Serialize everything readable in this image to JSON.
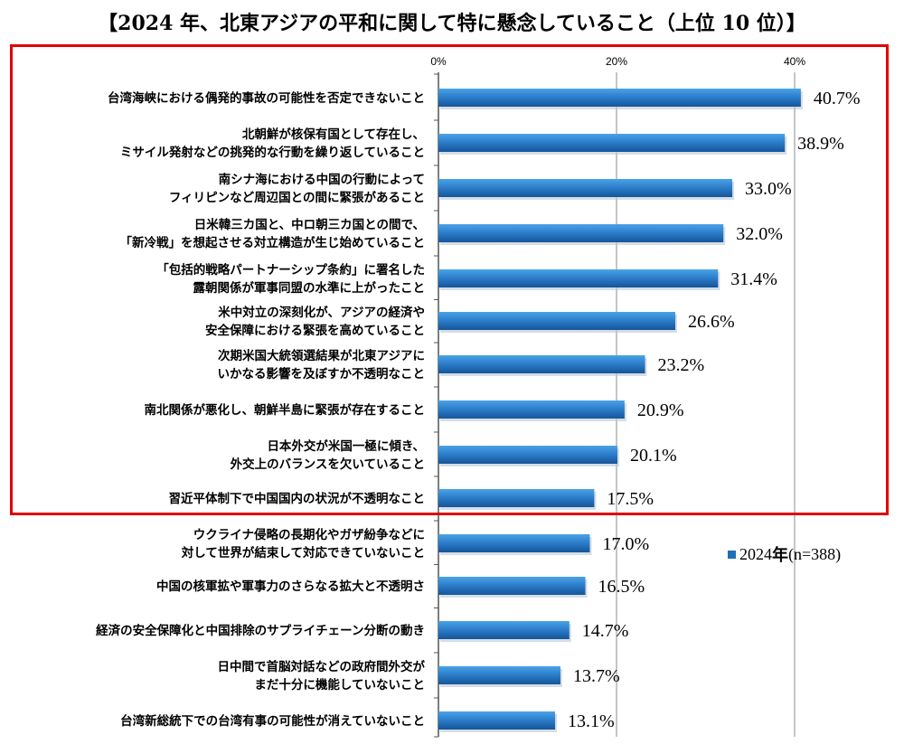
{
  "chart_data": {
    "type": "bar",
    "orientation": "horizontal",
    "title": "【2024 年、北東アジアの平和に関して特に懸念していること（上位 10 位）】",
    "xlabel": "",
    "ylabel": "",
    "xlim": [
      0,
      45
    ],
    "ticks": [
      0,
      20,
      40
    ],
    "tick_labels": [
      "0%",
      "20%",
      "40%"
    ],
    "legend": {
      "label_year": "2024",
      "label_suffix": "年",
      "label_n": "(n=388)",
      "position": "right"
    },
    "categories": [
      [
        "台湾海峡における偶発的事故の可能性を否定できないこと"
      ],
      [
        "北朝鮮が核保有国として存在し、",
        "ミサイル発射などの挑発的な行動を繰り返していること"
      ],
      [
        "南シナ海における中国の行動によって",
        "フィリピンなど周辺国との間に緊張があること"
      ],
      [
        "日米韓三カ国と、中ロ朝三カ国との間で、",
        "「新冷戦」を想起させる対立構造が生じ始めていること"
      ],
      [
        "「包括的戦略パートナーシップ条約」に署名した",
        "露朝関係が軍事同盟の水準に上がったこと"
      ],
      [
        "米中対立の深刻化が、アジアの経済や",
        "安全保障における緊張を高めていること"
      ],
      [
        "次期米国大統領選結果が北東アジアに",
        "いかなる影響を及ぼすか不透明なこと"
      ],
      [
        "南北関係が悪化し、朝鮮半島に緊張が存在すること"
      ],
      [
        "日本外交が米国一極に傾き、",
        "外交上のバランスを欠いていること"
      ],
      [
        "習近平体制下で中国国内の状況が不透明なこと"
      ],
      [
        "ウクライナ侵略の長期化やガザ紛争などに",
        "対して世界が結束して対応できていないこと"
      ],
      [
        "中国の核軍拡や軍事力のさらなる拡大と不透明さ"
      ],
      [
        "経済の安全保障化と中国排除のサプライチェーン分断の動き"
      ],
      [
        "日中間で首脳対話などの政府間外交が",
        "まだ十分に機能していないこと"
      ],
      [
        "台湾新総統下での台湾有事の可能性が消えていないこと"
      ]
    ],
    "series": [
      {
        "name": "2024年(n=388)",
        "values": [
          40.7,
          38.9,
          33.0,
          32.0,
          31.4,
          26.6,
          23.2,
          20.9,
          20.1,
          17.5,
          17.0,
          16.5,
          14.7,
          13.7,
          13.1
        ],
        "value_labels": [
          "40.7%",
          "38.9%",
          "33.0%",
          "32.0%",
          "31.4%",
          "26.6%",
          "23.2%",
          "20.9%",
          "20.1%",
          "17.5%",
          "17.0%",
          "16.5%",
          "14.7%",
          "13.7%",
          "13.1%"
        ]
      }
    ],
    "highlight": "top 10",
    "colors": {
      "bar_dark": "#1a5fa8",
      "bar_light": "#3f96dc",
      "grid": "#8c8c8c",
      "highlight_border": "#e00000"
    }
  }
}
